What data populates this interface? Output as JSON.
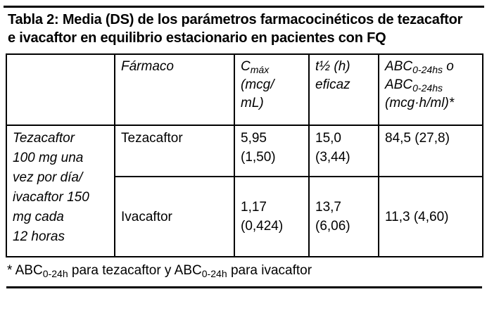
{
  "page": {
    "background_color": "#ffffff",
    "text_color": "#000000"
  },
  "title": "Tabla 2: Media (DS) de los parámetros farmacocinéticos de tezacaftor e ivacaftor en equilibrio estacionario en pacientes con FQ",
  "table": {
    "header": {
      "col_regimen": "",
      "col_farmaco": "Fármaco",
      "col_cmax": "C~máx~\n(mcg/\nmL)",
      "col_thalf": "t½ (h)\neficaz",
      "col_abc": "ABC~0-24hs~ o\nABC~0-24hs~\n(mcg·h/ml)*"
    },
    "rows": [
      {
        "regimen": "Tezacaftor\n100 mg una\nvez por día/\nivacaftor 150\nmg cada\n12 horas",
        "farmaco": "Tezacaftor",
        "cmax": "5,95\n(1,50)",
        "thalf": "15,0\n(3,44)",
        "abc": "84,5 (27,8)"
      },
      {
        "farmaco": "Ivacaftor",
        "cmax": "1,17\n(0,424)",
        "thalf": "13,7\n(6,06)",
        "abc": "11,3 (4,60)"
      }
    ]
  },
  "footnote": "* ABC~0-24h~ para tezacaftor y ABC~0-24h~ para ivacaftor"
}
